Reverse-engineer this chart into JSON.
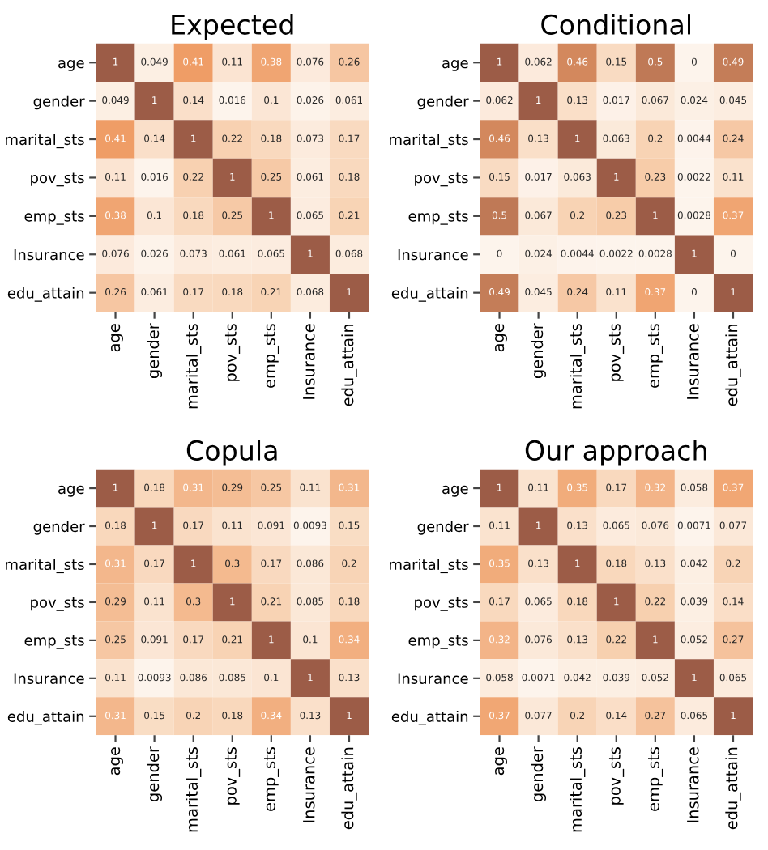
{
  "chart_data": [
    {
      "type": "heatmap",
      "title": "Expected",
      "categories": [
        "age",
        "gender",
        "marital_sts",
        "pov_sts",
        "emp_sts",
        "Insurance",
        "edu_attain"
      ],
      "y_categories": [
        "age",
        "gender",
        "marital_sts",
        "pov_sts",
        "emp_sts",
        "Insurance",
        "edu_attain"
      ],
      "data_labels": true,
      "cells": [
        [
          1,
          0.049,
          0.41,
          0.11,
          0.38,
          0.076,
          0.26
        ],
        [
          0.049,
          1,
          0.14,
          0.016,
          0.1,
          0.026,
          0.061
        ],
        [
          0.41,
          0.14,
          1,
          0.22,
          0.18,
          0.073,
          0.17
        ],
        [
          0.11,
          0.016,
          0.22,
          1,
          0.25,
          0.061,
          0.18
        ],
        [
          0.38,
          0.1,
          0.18,
          0.25,
          1,
          0.065,
          0.21
        ],
        [
          0.076,
          0.026,
          0.073,
          0.061,
          0.065,
          1,
          0.068
        ],
        [
          0.26,
          0.061,
          0.17,
          0.18,
          0.21,
          0.068,
          1
        ]
      ]
    },
    {
      "type": "heatmap",
      "title": "Conditional",
      "categories": [
        "age",
        "gender",
        "marital_sts",
        "pov_sts",
        "emp_sts",
        "Insurance",
        "edu_attain"
      ],
      "y_categories": [
        "age",
        "gender",
        "marital_sts",
        "pov_sts",
        "emp_sts",
        "Insurance",
        "edu_attain"
      ],
      "data_labels": true,
      "cells": [
        [
          1,
          0.062,
          0.46,
          0.15,
          0.5,
          0,
          0.49
        ],
        [
          0.062,
          1,
          0.13,
          0.017,
          0.067,
          0.024,
          0.045
        ],
        [
          0.46,
          0.13,
          1,
          0.063,
          0.2,
          0.0044,
          0.24
        ],
        [
          0.15,
          0.017,
          0.063,
          1,
          0.23,
          0.0022,
          0.11
        ],
        [
          0.5,
          0.067,
          0.2,
          0.23,
          1,
          0.0028,
          0.37
        ],
        [
          0,
          0.024,
          0.0044,
          0.0022,
          0.0028,
          1,
          0
        ],
        [
          0.49,
          0.045,
          0.24,
          0.11,
          0.37,
          0,
          1
        ]
      ]
    },
    {
      "type": "heatmap",
      "title": "Copula",
      "categories": [
        "age",
        "gender",
        "marital_sts",
        "pov_sts",
        "emp_sts",
        "Insurance",
        "edu_attain"
      ],
      "y_categories": [
        "age",
        "gender",
        "marital_sts",
        "pov_sts",
        "emp_sts",
        "Insurance",
        "edu_attain"
      ],
      "data_labels": true,
      "cells": [
        [
          1,
          0.18,
          0.31,
          0.29,
          0.25,
          0.11,
          0.31
        ],
        [
          0.18,
          1,
          0.17,
          0.11,
          0.091,
          0.0093,
          0.15
        ],
        [
          0.31,
          0.17,
          1,
          0.3,
          0.17,
          0.086,
          0.2
        ],
        [
          0.29,
          0.11,
          0.3,
          1,
          0.21,
          0.085,
          0.18
        ],
        [
          0.25,
          0.091,
          0.17,
          0.21,
          1,
          0.1,
          0.34
        ],
        [
          0.11,
          0.0093,
          0.086,
          0.085,
          0.1,
          1,
          0.13
        ],
        [
          0.31,
          0.15,
          0.2,
          0.18,
          0.34,
          0.13,
          1
        ]
      ]
    },
    {
      "type": "heatmap",
      "title": "Our approach",
      "categories": [
        "age",
        "gender",
        "marital_sts",
        "pov_sts",
        "emp_sts",
        "Insurance",
        "edu_attain"
      ],
      "y_categories": [
        "age",
        "gender",
        "marital_sts",
        "pov_sts",
        "emp_sts",
        "Insurance",
        "edu_attain"
      ],
      "data_labels": true,
      "cells": [
        [
          1,
          0.11,
          0.35,
          0.17,
          0.32,
          0.058,
          0.37
        ],
        [
          0.11,
          1,
          0.13,
          0.065,
          0.076,
          0.0071,
          0.077
        ],
        [
          0.35,
          0.13,
          1,
          0.18,
          0.13,
          0.042,
          0.2
        ],
        [
          0.17,
          0.065,
          0.18,
          1,
          0.22,
          0.039,
          0.14
        ],
        [
          0.32,
          0.076,
          0.13,
          0.22,
          1,
          0.052,
          0.27
        ],
        [
          0.058,
          0.0071,
          0.042,
          0.039,
          0.052,
          1,
          0.065
        ],
        [
          0.37,
          0.077,
          0.2,
          0.14,
          0.27,
          0.065,
          1
        ]
      ]
    }
  ]
}
